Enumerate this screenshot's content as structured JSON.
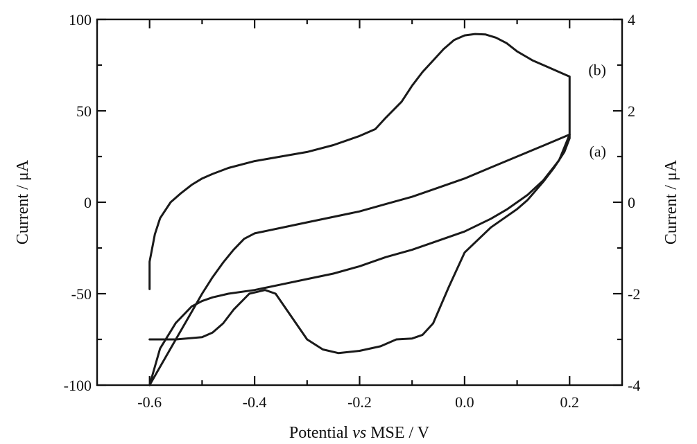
{
  "chart_data": {
    "type": "line",
    "xlabel_parts": [
      "Potential ",
      "vs",
      "  MSE / V"
    ],
    "ylabel_left": "Current / μA",
    "ylabel_right": "Current / μA",
    "xlim": [
      -0.7,
      0.3
    ],
    "ylim_left": [
      -100,
      100
    ],
    "ylim_right": [
      -4,
      4
    ],
    "x_ticks": [
      -0.6,
      -0.4,
      -0.2,
      0.0,
      0.2
    ],
    "x_tick_labels": [
      "-0.6",
      "-0.4",
      "-0.2",
      "0.0",
      "0.2"
    ],
    "y_left_ticks": [
      -100,
      -50,
      0,
      50,
      100
    ],
    "y_left_tick_labels": [
      "-100",
      "-50",
      "0",
      "50",
      "100"
    ],
    "y_right_ticks": [
      -4,
      -2,
      0,
      2,
      4
    ],
    "y_right_tick_labels": [
      "-4",
      "-2",
      "0",
      "2",
      "4"
    ],
    "grid": false,
    "series": [
      {
        "label": "(a)",
        "axis": "left",
        "x": [
          -0.6,
          -0.58,
          -0.55,
          -0.52,
          -0.5,
          -0.48,
          -0.46,
          -0.44,
          -0.42,
          -0.4,
          -0.35,
          -0.3,
          -0.25,
          -0.2,
          -0.15,
          -0.1,
          -0.05,
          0.0,
          0.05,
          0.1,
          0.15,
          0.2,
          0.2,
          0.18,
          0.15,
          0.12,
          0.08,
          0.05,
          0.0,
          -0.05,
          -0.1,
          -0.15,
          -0.2,
          -0.25,
          -0.3,
          -0.35,
          -0.4,
          -0.45,
          -0.48,
          -0.5,
          -0.52,
          -0.55,
          -0.58,
          -0.6
        ],
        "y": [
          -100,
          -90,
          -75,
          -60,
          -50,
          -41,
          -33,
          -26,
          -20,
          -17,
          -14,
          -11,
          -8,
          -5,
          -1,
          3,
          8,
          13,
          19,
          25,
          31,
          37,
          37,
          23,
          12,
          4,
          -4,
          -9,
          -16,
          -21,
          -26,
          -30,
          -35,
          -39,
          -42,
          -45,
          -48,
          -50,
          -52,
          -54,
          -57,
          -66,
          -80,
          -100
        ]
      },
      {
        "label": "(b)",
        "axis": "right",
        "x": [
          -0.6,
          -0.6,
          -0.59,
          -0.58,
          -0.56,
          -0.54,
          -0.52,
          -0.5,
          -0.48,
          -0.45,
          -0.4,
          -0.35,
          -0.3,
          -0.25,
          -0.2,
          -0.17,
          -0.15,
          -0.12,
          -0.1,
          -0.08,
          -0.06,
          -0.04,
          -0.02,
          0.0,
          0.02,
          0.04,
          0.06,
          0.08,
          0.1,
          0.13,
          0.16,
          0.19,
          0.2,
          0.2,
          0.19,
          0.17,
          0.15,
          0.12,
          0.1,
          0.05,
          0.0,
          -0.03,
          -0.06,
          -0.08,
          -0.1,
          -0.13,
          -0.16,
          -0.2,
          -0.24,
          -0.27,
          -0.3,
          -0.33,
          -0.36,
          -0.38,
          -0.41,
          -0.44,
          -0.46,
          -0.48,
          -0.5,
          -0.55,
          -0.6
        ],
        "y": [
          -1.9,
          -1.3,
          -0.7,
          -0.35,
          0.0,
          0.2,
          0.38,
          0.52,
          0.62,
          0.75,
          0.9,
          1.0,
          1.1,
          1.25,
          1.45,
          1.6,
          1.85,
          2.2,
          2.55,
          2.85,
          3.1,
          3.35,
          3.55,
          3.65,
          3.68,
          3.67,
          3.6,
          3.48,
          3.3,
          3.1,
          2.95,
          2.8,
          2.75,
          1.4,
          1.1,
          0.75,
          0.45,
          0.05,
          -0.15,
          -0.55,
          -1.1,
          -1.85,
          -2.65,
          -2.9,
          -2.98,
          -3.0,
          -3.15,
          -3.25,
          -3.3,
          -3.22,
          -3.0,
          -2.5,
          -2.0,
          -1.92,
          -2.0,
          -2.35,
          -2.65,
          -2.85,
          -2.95,
          -3.0,
          -3.0
        ]
      }
    ]
  }
}
